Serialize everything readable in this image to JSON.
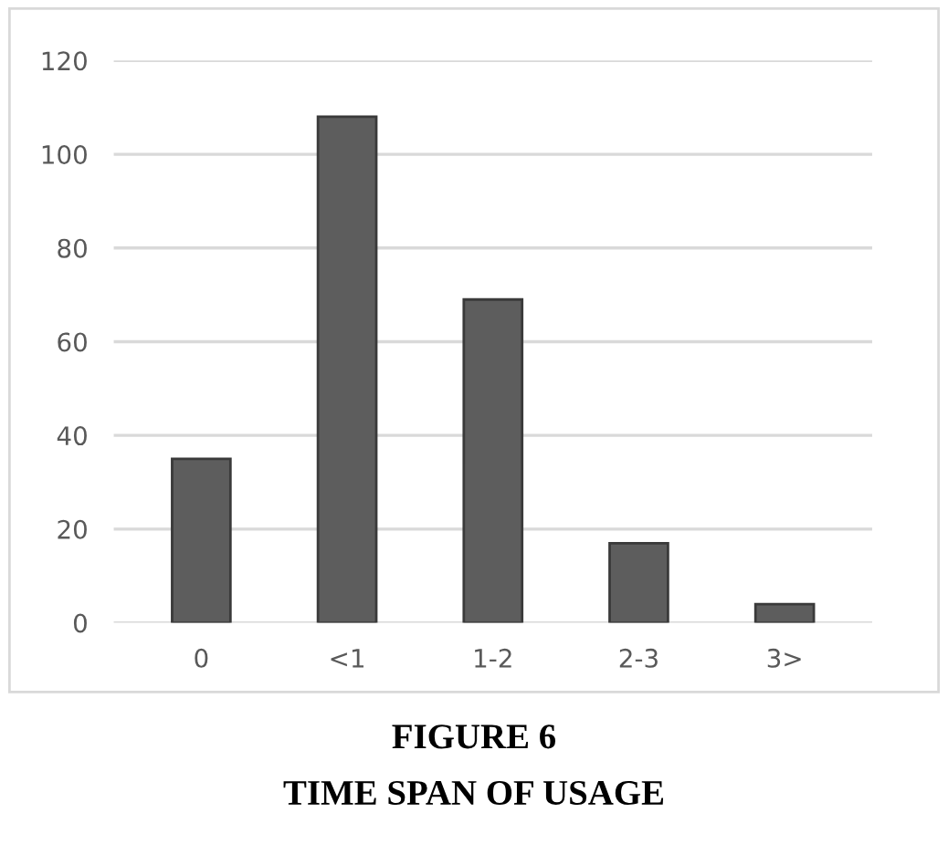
{
  "chart_data": {
    "type": "bar",
    "title": "FIGURE 6",
    "subtitle": "TIME SPAN OF USAGE",
    "categories": [
      "0",
      "<1",
      "1-2",
      "2-3",
      "3>"
    ],
    "values": [
      35,
      108,
      69,
      17,
      4
    ],
    "color": "#5d5d5d",
    "ylim": [
      0,
      120
    ],
    "yticks": [
      0,
      20,
      40,
      60,
      80,
      100,
      120
    ],
    "grid": "y"
  }
}
